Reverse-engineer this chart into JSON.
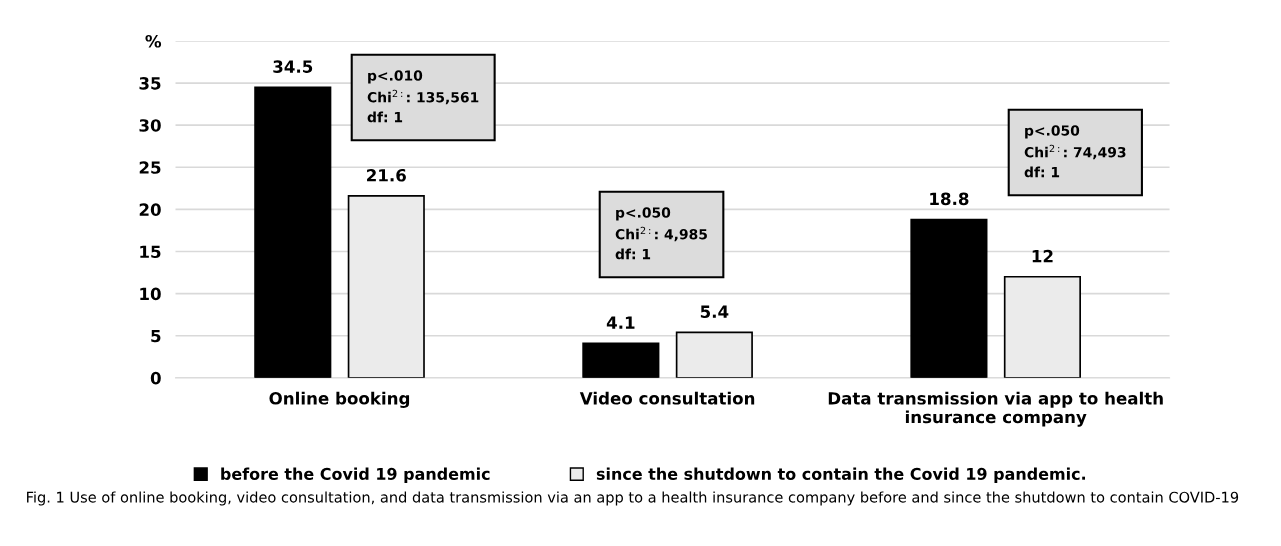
{
  "chart_data": {
    "type": "bar",
    "categories": [
      "Online booking",
      "Video consultation",
      "Data transmission via app to health\ninsurance company"
    ],
    "series": [
      {
        "name": "before the Covid 19 pandemic",
        "color": "#000000",
        "values": [
          34.5,
          4.1,
          18.8
        ]
      },
      {
        "name": "since the shutdown to contain the Covid 19 pandemic.",
        "color": "#ebebeb",
        "values": [
          21.6,
          5.4,
          12
        ]
      }
    ],
    "ylim": [
      0,
      40
    ],
    "yticks": [
      0,
      5,
      10,
      15,
      20,
      25,
      30,
      35,
      {
        "value": 40,
        "label": "%"
      }
    ],
    "grid": "y",
    "legend": "bottom",
    "data_labels": true,
    "annotations": [
      "p<.010\nChi$^{2:}$: 135,561\ndf: 1",
      "p<.050\nChi$^{2:}$: 4,985\ndf: 1",
      "p<.050\nChi$^{2:}$: 74,493\ndf: 1",
      "Fig. 1 Use of online booking, video consultation, and data transmission via an app to a health insurance company before and since the shutdown to contain COVID-19"
    ]
  }
}
